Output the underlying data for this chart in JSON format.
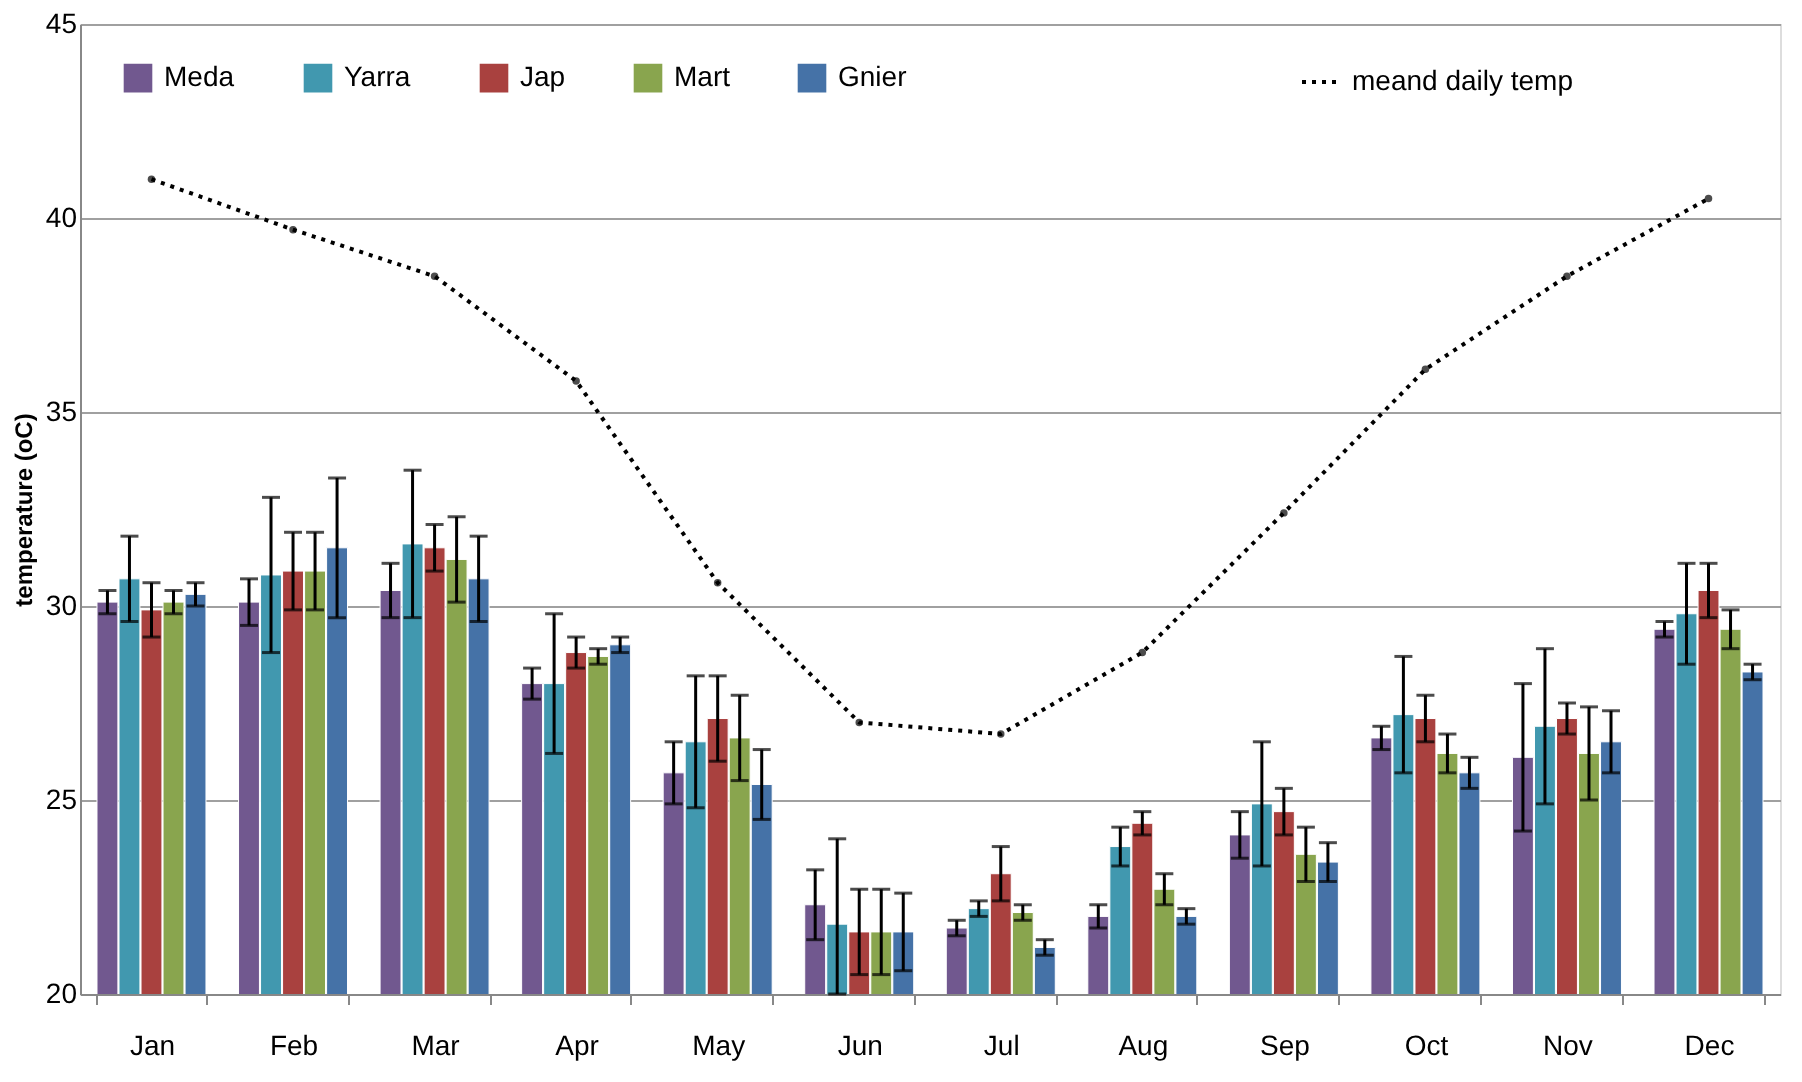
{
  "chart_data": {
    "type": "bar",
    "ylabel": "temperature (oC)",
    "categories": [
      "Jan",
      "Feb",
      "Mar",
      "Apr",
      "May",
      "Jun",
      "Jul",
      "Aug",
      "Sep",
      "Oct",
      "Nov",
      "Dec"
    ],
    "series": [
      {
        "name": "Meda",
        "color": "#71588f",
        "values": [
          30.1,
          30.1,
          30.4,
          28.0,
          25.7,
          22.3,
          21.7,
          22.0,
          24.1,
          26.6,
          26.1,
          29.4
        ],
        "errors": [
          0.3,
          0.6,
          0.7,
          0.4,
          0.8,
          0.9,
          0.2,
          0.3,
          0.6,
          0.3,
          1.9,
          0.2
        ]
      },
      {
        "name": "Yarra",
        "color": "#4198af",
        "values": [
          30.7,
          30.8,
          31.6,
          28.0,
          26.5,
          21.8,
          22.2,
          23.8,
          24.9,
          27.2,
          26.9,
          29.8
        ],
        "errors": [
          1.1,
          2.0,
          1.9,
          1.8,
          1.7,
          [
            20,
            24
          ],
          0.2,
          0.5,
          1.6,
          1.5,
          2.0,
          1.3
        ]
      },
      {
        "name": "Jap",
        "color": "#a9413f",
        "values": [
          29.9,
          30.9,
          31.5,
          28.8,
          27.1,
          21.6,
          23.1,
          24.4,
          24.7,
          27.1,
          27.1,
          30.4
        ],
        "errors": [
          0.7,
          1.0,
          0.6,
          0.4,
          1.1,
          1.1,
          0.7,
          0.3,
          0.6,
          0.6,
          0.4,
          0.7
        ]
      },
      {
        "name": "Mart",
        "color": "#89a54e",
        "values": [
          30.1,
          30.9,
          31.2,
          28.7,
          26.6,
          21.6,
          22.1,
          22.7,
          23.6,
          26.2,
          26.2,
          29.4
        ],
        "errors": [
          0.3,
          1.0,
          1.1,
          0.2,
          1.1,
          1.1,
          0.2,
          0.4,
          0.7,
          0.5,
          1.2,
          0.5
        ]
      },
      {
        "name": "Gnier",
        "color": "#4572a7",
        "values": [
          30.3,
          31.5,
          30.7,
          29.0,
          25.4,
          21.6,
          21.2,
          22.0,
          23.4,
          25.7,
          26.5,
          28.3
        ],
        "errors": [
          0.3,
          1.8,
          1.1,
          0.2,
          0.9,
          1.0,
          0.2,
          0.2,
          0.5,
          0.4,
          0.8,
          0.2
        ]
      },
      {
        "name": "meand daily temp",
        "type": "line",
        "color": "#000000",
        "line_style": "dotted",
        "marker": "circle",
        "values": [
          41.0,
          39.7,
          38.5,
          35.8,
          30.6,
          27.0,
          26.7,
          28.8,
          32.4,
          36.1,
          38.5,
          40.5
        ]
      }
    ],
    "ylim": [
      20,
      45
    ],
    "yticks": [
      20,
      25,
      30,
      35,
      40,
      45
    ],
    "grid": "y",
    "legend": "top"
  }
}
